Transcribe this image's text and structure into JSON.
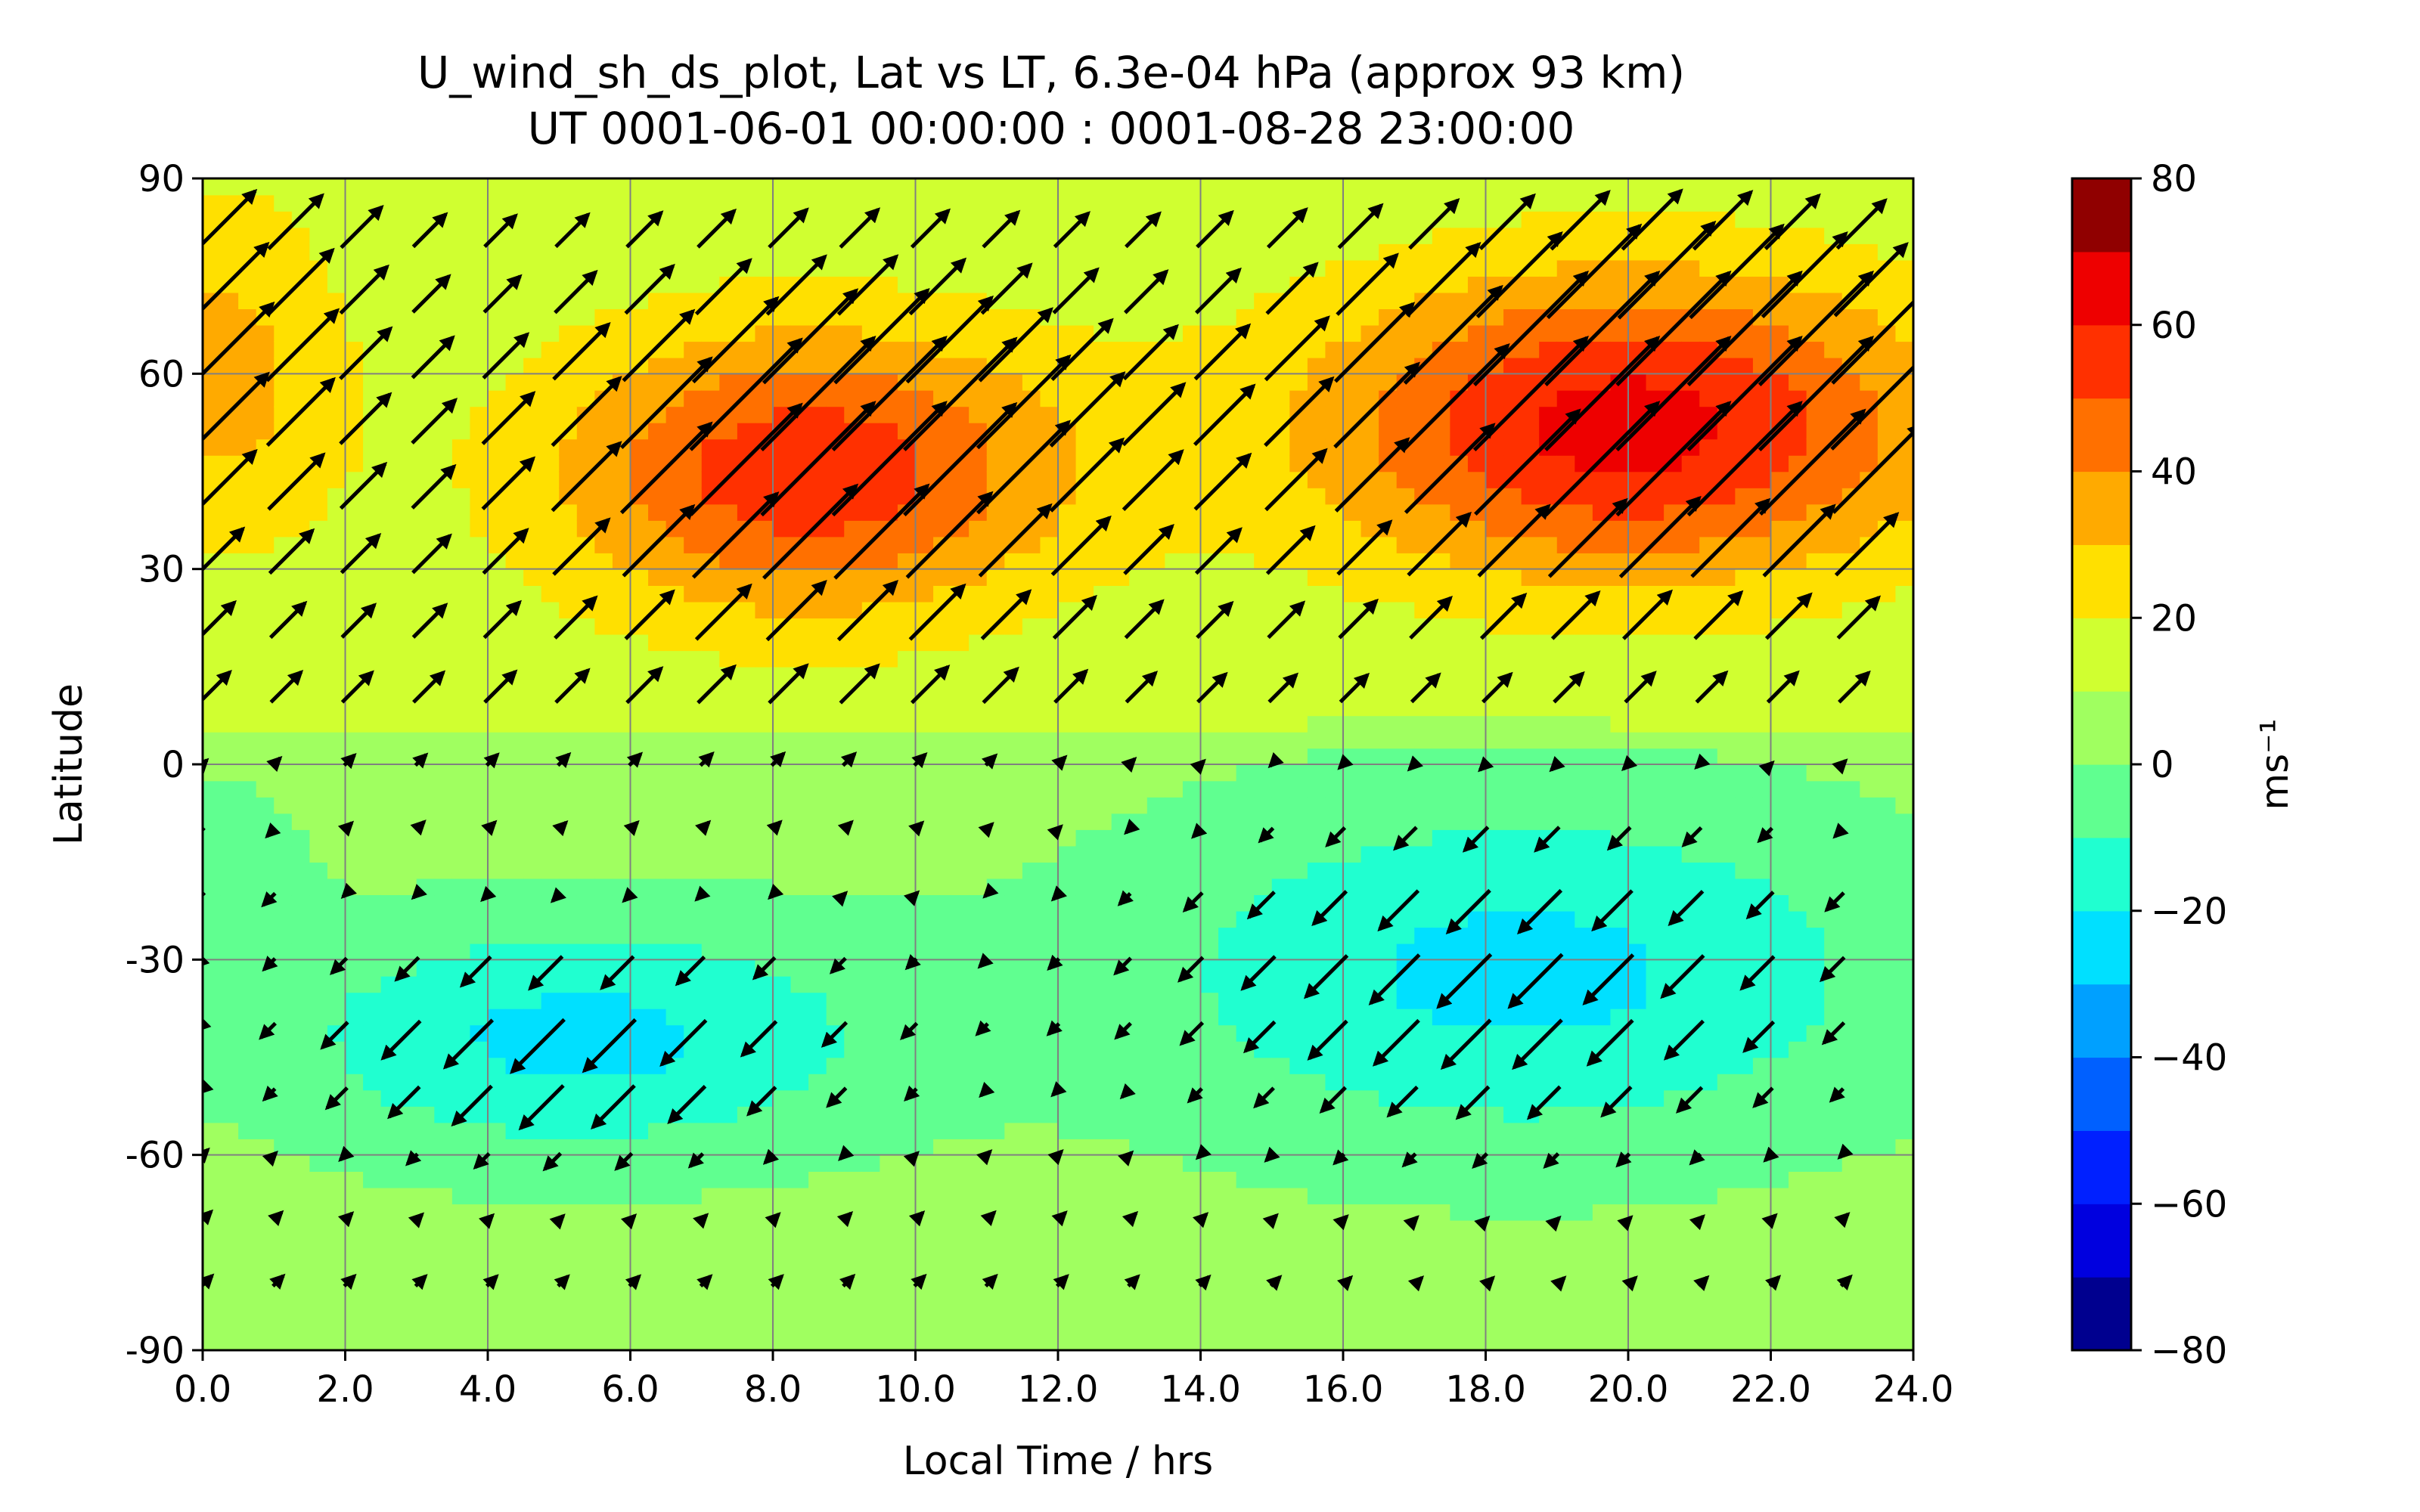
{
  "chart_data": {
    "type": "heatmap",
    "title_line1": "U_wind_sh_ds_plot, Lat vs LT, 6.3e-04 hPa (approx 93 km)",
    "title_line2": "UT 0001-06-01 00:00:00 : 0001-08-28 23:00:00",
    "xlabel": "Local Time / hrs",
    "ylabel": "Latitude",
    "xlim": [
      0,
      24
    ],
    "ylim": [
      -90,
      90
    ],
    "x_ticks": [
      "0.0",
      "2.0",
      "4.0",
      "6.0",
      "8.0",
      "10.0",
      "12.0",
      "14.0",
      "16.0",
      "18.0",
      "20.0",
      "22.0",
      "24.0"
    ],
    "x_tick_values": [
      0,
      2,
      4,
      6,
      8,
      10,
      12,
      14,
      16,
      18,
      20,
      22,
      24
    ],
    "y_ticks": [
      "90",
      "60",
      "30",
      "0",
      "-30",
      "-60",
      "-90"
    ],
    "y_tick_values": [
      90,
      60,
      30,
      0,
      -30,
      -60,
      -90
    ],
    "grid": true,
    "colorbar": {
      "label": "ms⁻¹",
      "range": [
        -80,
        80
      ],
      "ticks": [
        "80",
        "60",
        "40",
        "20",
        "0",
        "−20",
        "−40",
        "−60",
        "−80"
      ],
      "tick_values": [
        80,
        60,
        40,
        20,
        0,
        -20,
        -40,
        -60,
        -80
      ],
      "levels": [
        -80,
        -70,
        -60,
        -50,
        -40,
        -30,
        -20,
        -10,
        0,
        10,
        20,
        30,
        40,
        50,
        60,
        70,
        80
      ],
      "colors": [
        "#00008f",
        "#0000df",
        "#0020ff",
        "#0060ff",
        "#00a0ff",
        "#00e0ff",
        "#20ffd0",
        "#60ff90",
        "#a0ff60",
        "#d0ff30",
        "#ffe000",
        "#ffaa00",
        "#ff7000",
        "#ff3000",
        "#ee0000",
        "#900000"
      ]
    },
    "field_features": [
      {
        "kind": "max",
        "x": 8.5,
        "y": 45,
        "value": 45,
        "sx": 2.6,
        "sy": 16
      },
      {
        "kind": "max",
        "x": 20,
        "y": 52,
        "value": 52,
        "sx": 3.2,
        "sy": 17
      },
      {
        "kind": "max",
        "x": 0.2,
        "y": 60,
        "value": 22,
        "sx": 1.3,
        "sy": 20
      },
      {
        "kind": "min",
        "x": 5.3,
        "y": -42,
        "value": -27,
        "sx": 3.0,
        "sy": 13
      },
      {
        "kind": "min",
        "x": 18.5,
        "y": -32,
        "value": -27,
        "sx": 3.8,
        "sy": 19
      },
      {
        "kind": "min",
        "x": 0.2,
        "y": -15,
        "value": -12,
        "sx": 0.8,
        "sy": 9
      }
    ],
    "vectors_note": "wind vectors at 1-hr, 10-deg spacing; length scales with local wind speed, direction from westward/eastward shear"
  }
}
